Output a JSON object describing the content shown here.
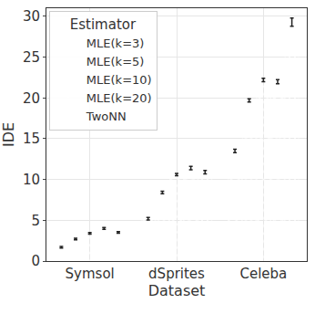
{
  "chart_data": {
    "type": "bar",
    "x_label": "Dataset",
    "y_label": "IDE",
    "legend_title": "Estimator",
    "legend": "top-left",
    "grid": true,
    "categories": [
      "Symsol",
      "dSprites",
      "Celeba"
    ],
    "ylim": [
      0,
      31
    ],
    "yticks": [
      0,
      5,
      10,
      15,
      20,
      25,
      30
    ],
    "series": [
      {
        "name": "MLE(k=3)",
        "color": "#2b3fd4",
        "marker": "/",
        "values": [
          1.7,
          5.2,
          13.5
        ],
        "errors": [
          0.1,
          0.15,
          0.2
        ]
      },
      {
        "name": "MLE(k=5)",
        "color": "#2a5ec2",
        "marker": ".",
        "values": [
          2.7,
          8.4,
          19.7
        ],
        "errors": [
          0.1,
          0.15,
          0.2
        ]
      },
      {
        "name": "MLE(k=10)",
        "color": "#2a80b2",
        "marker": "\\",
        "values": [
          3.4,
          10.6,
          22.2
        ],
        "errors": [
          0.1,
          0.15,
          0.2
        ]
      },
      {
        "name": "MLE(k=20)",
        "color": "#22a4a2",
        "marker": "x",
        "values": [
          4.0,
          11.4,
          22.0
        ],
        "errors": [
          0.1,
          0.2,
          0.25
        ]
      },
      {
        "name": "TwoNN",
        "color": "#2bc38c",
        "marker": "|",
        "values": [
          3.5,
          10.9,
          29.3
        ],
        "errors": [
          0.1,
          0.2,
          0.5
        ]
      }
    ]
  }
}
